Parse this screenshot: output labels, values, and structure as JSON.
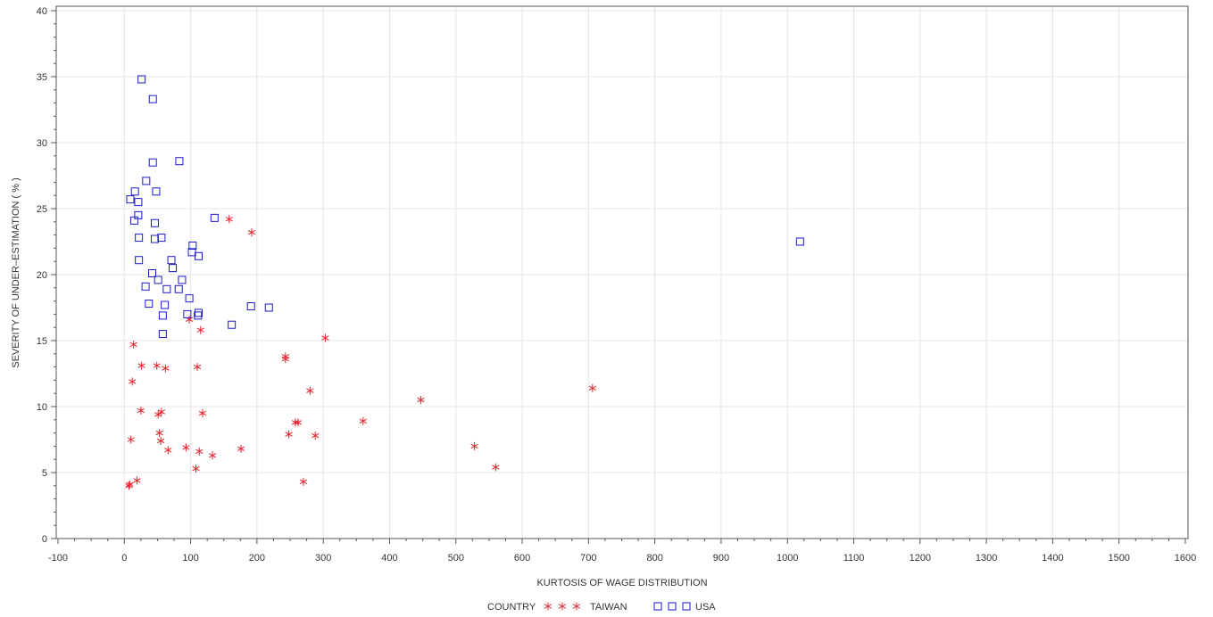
{
  "chart_data": {
    "type": "scatter",
    "xlabel": "KURTOSIS OF WAGE DISTRIBUTION",
    "ylabel": "SEVERITY OF UNDER–ESTIMATION ( % )",
    "xlim": [
      -100,
      1600
    ],
    "ylim": [
      0,
      40
    ],
    "x_ticks": [
      -100,
      0,
      100,
      200,
      300,
      400,
      500,
      600,
      700,
      800,
      900,
      1000,
      1100,
      1200,
      1300,
      1400,
      1500,
      1600
    ],
    "y_ticks": [
      0,
      5,
      10,
      15,
      20,
      25,
      30,
      35,
      40
    ],
    "grid": true,
    "legend": {
      "title": "COUNTRY",
      "placement": "bottom-center"
    },
    "series": [
      {
        "name": "TAIWAN",
        "marker": "star",
        "color": "#e8202a",
        "points": [
          [
            8,
            4.1
          ],
          [
            7,
            4.0
          ],
          [
            19,
            4.4
          ],
          [
            10,
            7.5
          ],
          [
            12,
            11.9
          ],
          [
            14,
            14.7
          ],
          [
            26,
            13.1
          ],
          [
            25,
            9.7
          ],
          [
            49,
            13.1
          ],
          [
            51,
            9.4
          ],
          [
            56,
            9.6
          ],
          [
            53,
            8.0
          ],
          [
            55,
            7.4
          ],
          [
            62,
            12.9
          ],
          [
            66,
            6.7
          ],
          [
            93,
            6.9
          ],
          [
            98,
            16.6
          ],
          [
            110,
            13.0
          ],
          [
            108,
            5.3
          ],
          [
            113,
            6.6
          ],
          [
            115,
            15.8
          ],
          [
            118,
            9.5
          ],
          [
            133,
            6.3
          ],
          [
            158,
            24.2
          ],
          [
            176,
            6.8
          ],
          [
            192,
            23.2
          ],
          [
            243,
            13.8
          ],
          [
            243,
            13.6
          ],
          [
            248,
            7.9
          ],
          [
            258,
            8.8
          ],
          [
            262,
            8.8
          ],
          [
            270,
            4.3
          ],
          [
            280,
            11.2
          ],
          [
            288,
            7.8
          ],
          [
            303,
            15.2
          ],
          [
            360,
            8.9
          ],
          [
            447,
            10.5
          ],
          [
            528,
            7.0
          ],
          [
            560,
            5.4
          ],
          [
            706,
            11.4
          ]
        ]
      },
      {
        "name": "USA",
        "marker": "square",
        "color": "#1a1acd",
        "points": [
          [
            26,
            34.8
          ],
          [
            43,
            33.3
          ],
          [
            43,
            28.5
          ],
          [
            83,
            28.6
          ],
          [
            33,
            27.1
          ],
          [
            16,
            26.3
          ],
          [
            48,
            26.3
          ],
          [
            9,
            25.7
          ],
          [
            21,
            25.5
          ],
          [
            21,
            24.5
          ],
          [
            15,
            24.1
          ],
          [
            46,
            23.9
          ],
          [
            136,
            24.3
          ],
          [
            22,
            22.8
          ],
          [
            46,
            22.7
          ],
          [
            56,
            22.8
          ],
          [
            103,
            22.2
          ],
          [
            102,
            21.7
          ],
          [
            22,
            21.1
          ],
          [
            71,
            21.1
          ],
          [
            112,
            21.4
          ],
          [
            73,
            20.5
          ],
          [
            42,
            20.1
          ],
          [
            51,
            19.6
          ],
          [
            87,
            19.6
          ],
          [
            32,
            19.1
          ],
          [
            64,
            18.9
          ],
          [
            82,
            18.9
          ],
          [
            98,
            18.2
          ],
          [
            37,
            17.8
          ],
          [
            61,
            17.7
          ],
          [
            58,
            16.9
          ],
          [
            95,
            17.0
          ],
          [
            112,
            17.1
          ],
          [
            111,
            16.9
          ],
          [
            191,
            17.6
          ],
          [
            218,
            17.5
          ],
          [
            162,
            16.2
          ],
          [
            58,
            15.5
          ],
          [
            1019,
            22.5
          ]
        ]
      }
    ]
  }
}
